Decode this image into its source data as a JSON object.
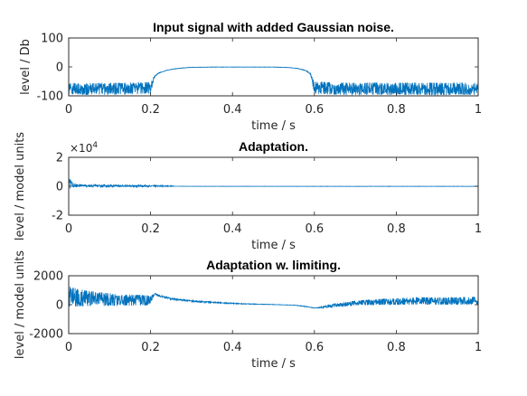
{
  "figure": {
    "line_color": "#0072BD",
    "axis_color": "#262626",
    "background": "#ffffff"
  },
  "chart_data": [
    {
      "type": "line",
      "title": "Input signal with added Gaussian noise.",
      "xlabel": "time / s",
      "ylabel": "level / Db",
      "xlim": [
        0,
        1
      ],
      "ylim": [
        -100,
        100
      ],
      "xticks": [
        0,
        0.2,
        0.4,
        0.6,
        0.8,
        1
      ],
      "xtick_labels": [
        "0",
        "0.2",
        "0.4",
        "0.6",
        "0.8",
        "1"
      ],
      "yticks": [
        -100,
        0,
        100
      ],
      "ytick_labels": [
        "-100",
        "0",
        "100"
      ],
      "grid": false,
      "series": [
        {
          "x": [
            0,
            0.05,
            0.1,
            0.15,
            0.2,
            0.21,
            0.22,
            0.24,
            0.26,
            0.28,
            0.3,
            0.35,
            0.4,
            0.45,
            0.5,
            0.52,
            0.54,
            0.56,
            0.58,
            0.59,
            0.6,
            0.65,
            0.7,
            0.75,
            0.8,
            0.85,
            0.9,
            0.95,
            1
          ],
          "upper": [
            -55,
            -56,
            -55,
            -54,
            -52,
            -30,
            -20,
            -11,
            -6,
            -3,
            -1,
            0,
            0,
            0,
            0,
            -1,
            -2,
            -5,
            -12,
            -22,
            -50,
            -54,
            -55,
            -54,
            -55,
            -54,
            -55,
            -54,
            -55
          ],
          "lower": [
            -95,
            -97,
            -96,
            -95,
            -92,
            -35,
            -22,
            -12,
            -7,
            -4,
            -2,
            -1,
            -1,
            -1,
            -1,
            -2,
            -3,
            -6,
            -14,
            -26,
            -92,
            -96,
            -98,
            -96,
            -97,
            -96,
            -98,
            -96,
            -97
          ]
        }
      ]
    },
    {
      "type": "line",
      "title": "Adaptation.",
      "xlabel": "time / s",
      "ylabel": "level / model units",
      "xlim": [
        0,
        1
      ],
      "ylim": [
        -20000,
        20000
      ],
      "xticks": [
        0,
        0.2,
        0.4,
        0.6,
        0.8,
        1
      ],
      "xtick_labels": [
        "0",
        "0.2",
        "0.4",
        "0.6",
        "0.8",
        "1"
      ],
      "yticks": [
        -20000,
        0,
        20000
      ],
      "ytick_labels": [
        "-2",
        "0",
        "2"
      ],
      "exponent_label": "×10",
      "exponent_power": "4",
      "grid": false,
      "series": [
        {
          "x": [
            0,
            0.005,
            0.01,
            0.02,
            0.05,
            0.1,
            0.15,
            0.2,
            0.25,
            0.26,
            0.3,
            0.4,
            0.5,
            0.6,
            0.7,
            0.8,
            0.9,
            1
          ],
          "upper": [
            9000,
            4000,
            2500,
            1500,
            1100,
            900,
            800,
            700,
            400,
            0,
            0,
            0,
            0,
            0,
            0,
            0,
            0,
            0
          ],
          "lower": [
            -3000,
            -1500,
            -900,
            -600,
            -500,
            -450,
            -400,
            -350,
            -200,
            0,
            -100,
            -100,
            -100,
            -150,
            -150,
            -150,
            -150,
            -150
          ]
        }
      ]
    },
    {
      "type": "line",
      "title": "Adaptation w. limiting.",
      "xlabel": "time / s",
      "ylabel": "level / model units",
      "xlim": [
        0,
        1
      ],
      "ylim": [
        -2000,
        2000
      ],
      "xticks": [
        0,
        0.2,
        0.4,
        0.6,
        0.8,
        1
      ],
      "xtick_labels": [
        "0",
        "0.2",
        "0.4",
        "0.6",
        "0.8",
        "1"
      ],
      "yticks": [
        -2000,
        0,
        2000
      ],
      "ytick_labels": [
        "-2000",
        "0",
        "2000"
      ],
      "grid": false,
      "series": [
        {
          "x": [
            0,
            0.01,
            0.02,
            0.05,
            0.1,
            0.15,
            0.19,
            0.2,
            0.21,
            0.22,
            0.25,
            0.3,
            0.35,
            0.4,
            0.45,
            0.5,
            0.55,
            0.58,
            0.6,
            0.62,
            0.65,
            0.7,
            0.75,
            0.8,
            0.85,
            0.9,
            0.95,
            1
          ],
          "upper": [
            1300,
            1200,
            1100,
            950,
            800,
            700,
            650,
            600,
            800,
            700,
            450,
            300,
            200,
            120,
            60,
            20,
            -20,
            -100,
            -230,
            -120,
            60,
            280,
            380,
            450,
            520,
            500,
            520,
            560
          ],
          "lower": [
            -200,
            -150,
            -120,
            -100,
            -80,
            -70,
            -60,
            100,
            700,
            550,
            350,
            200,
            120,
            60,
            20,
            0,
            -40,
            -150,
            -250,
            -230,
            -170,
            -60,
            -20,
            0,
            0,
            0,
            0,
            0
          ]
        }
      ]
    }
  ]
}
